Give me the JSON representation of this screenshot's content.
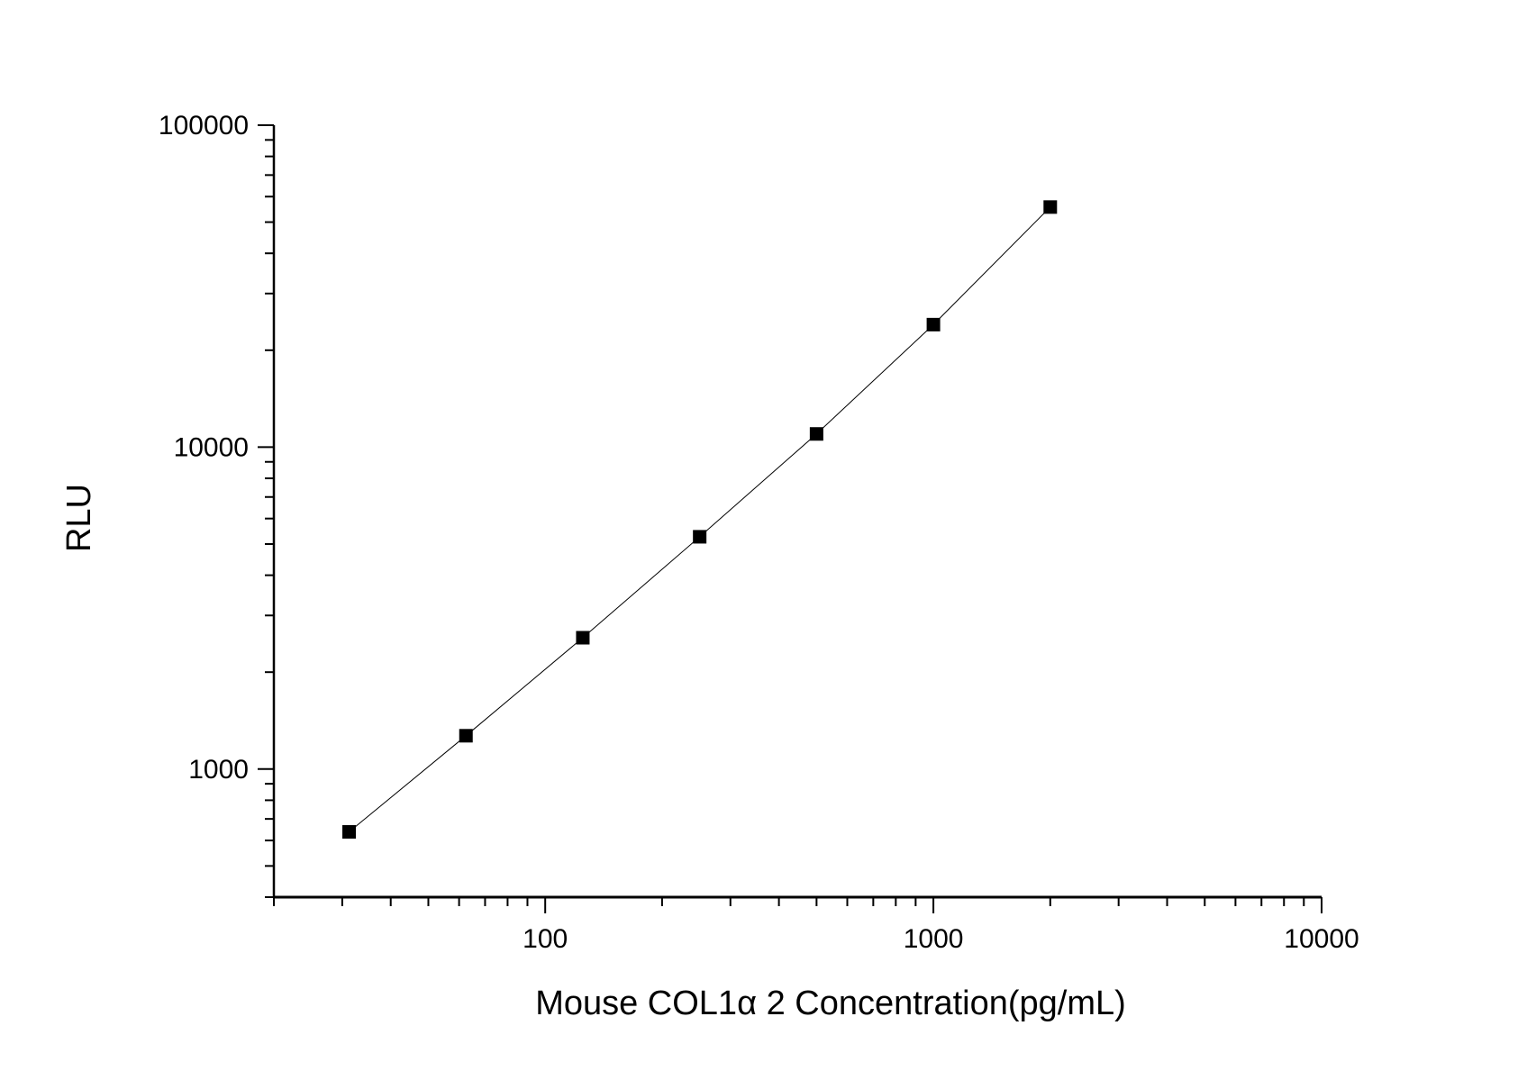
{
  "chart_data": {
    "type": "scatter",
    "title": "",
    "xlabel": "Mouse COL1α 2 Concentration(pg/mL)",
    "ylabel": "RLU",
    "x_scale": "log",
    "y_scale": "log",
    "xlim": [
      20,
      10000
    ],
    "ylim": [
      400,
      100000
    ],
    "x_ticks": [
      100,
      1000,
      10000
    ],
    "x_tick_labels": [
      "100",
      "1000",
      "10000"
    ],
    "y_ticks": [
      1000,
      10000,
      100000
    ],
    "y_tick_labels": [
      "1000",
      "10000",
      "100000"
    ],
    "grid": false,
    "legend": "none",
    "marker": "square",
    "line": "connected",
    "color": "#000000",
    "series": [
      {
        "x": [
          31.25,
          62.5,
          125,
          250,
          500,
          1000,
          2000
        ],
        "y": [
          638,
          1269,
          2558,
          5266,
          10990,
          24020,
          55690
        ]
      }
    ]
  }
}
